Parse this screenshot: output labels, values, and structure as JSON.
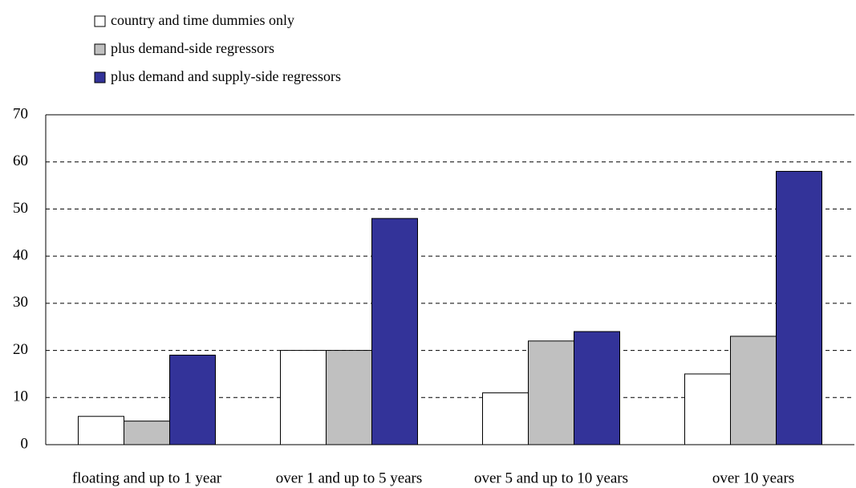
{
  "chart_data": {
    "type": "bar",
    "categories": [
      "floating and up to 1 year",
      "over 1 and up to 5 years",
      "over 5 and up to 10 years",
      "over 10 years"
    ],
    "series": [
      {
        "name": "country and time dummies only",
        "color": "#ffffff",
        "values": [
          6,
          20,
          11,
          15
        ]
      },
      {
        "name": "plus demand-side regressors",
        "color": "#c0c0c0",
        "values": [
          5,
          20,
          22,
          23
        ]
      },
      {
        "name": "plus demand and supply-side regressors",
        "color": "#333399",
        "values": [
          19,
          48,
          24,
          58
        ]
      }
    ],
    "ylim": [
      0,
      70
    ],
    "yticks": [
      0,
      10,
      20,
      30,
      40,
      50,
      60,
      70
    ],
    "grid": true,
    "legend": "top-left"
  }
}
